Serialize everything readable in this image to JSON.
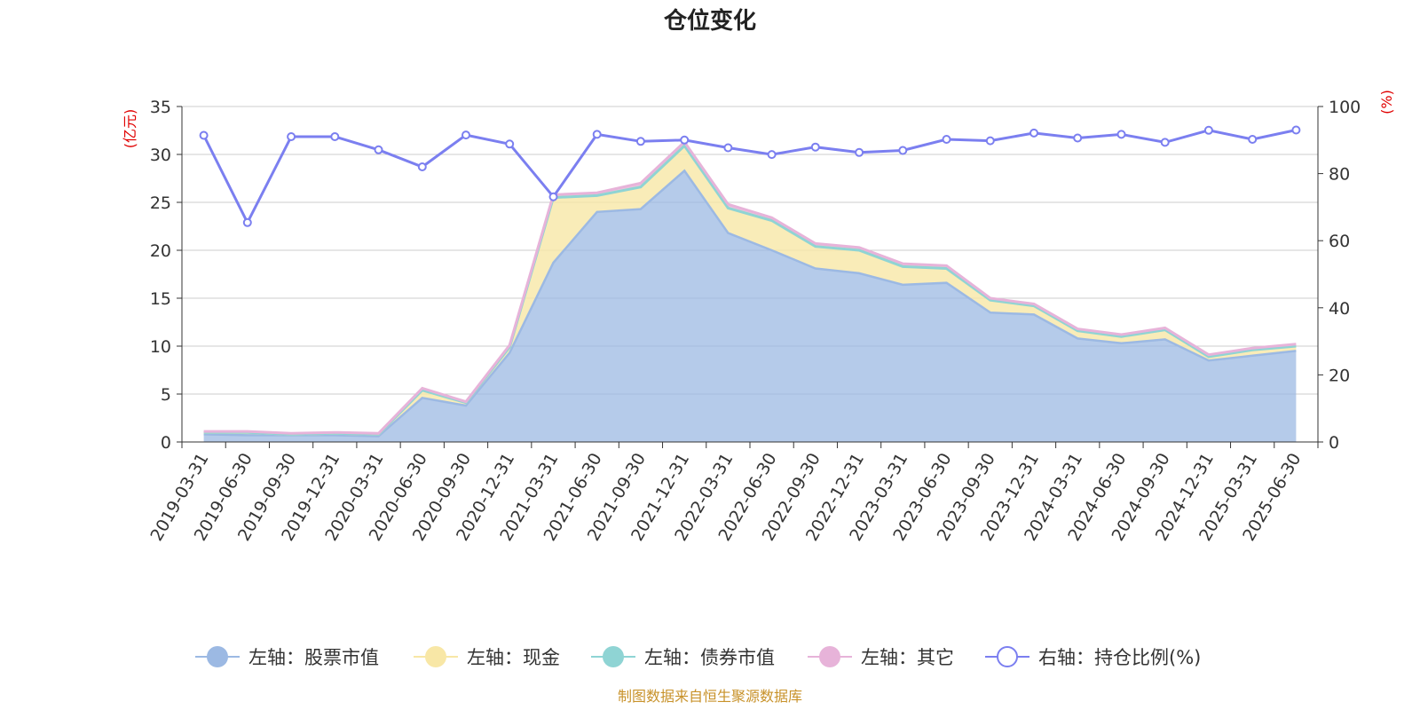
{
  "chart_data": {
    "type": "area",
    "title": "仓位变化",
    "left_unit": "(亿元)",
    "right_unit": "(%)",
    "ylim": [
      0,
      35
    ],
    "y_ticks": [
      0,
      5,
      10,
      15,
      20,
      25,
      30,
      35
    ],
    "y2lim": [
      0,
      100
    ],
    "y2_ticks": [
      0,
      20,
      40,
      60,
      80,
      100
    ],
    "grid": true,
    "legend_position": "bottom",
    "categories": [
      "2019-03-31",
      "2019-06-30",
      "2019-09-30",
      "2019-12-31",
      "2020-03-31",
      "2020-06-30",
      "2020-09-30",
      "2020-12-31",
      "2021-03-31",
      "2021-06-30",
      "2021-09-30",
      "2021-12-31",
      "2022-03-31",
      "2022-06-30",
      "2022-09-30",
      "2022-12-31",
      "2023-03-31",
      "2023-06-30",
      "2023-09-30",
      "2023-12-31",
      "2024-03-31",
      "2024-06-30",
      "2024-09-30",
      "2024-12-31",
      "2025-03-31",
      "2025-06-30"
    ],
    "series": [
      {
        "name": "左轴：股票市值",
        "axis": "left",
        "kind": "stacked-area",
        "color": "#9cb9e3",
        "values": [
          0.8,
          0.7,
          0.7,
          0.7,
          0.6,
          4.6,
          3.8,
          9.3,
          18.7,
          24.0,
          24.3,
          28.3,
          21.8,
          20.0,
          18.1,
          17.6,
          16.4,
          16.6,
          13.5,
          13.3,
          10.8,
          10.3,
          10.7,
          8.5,
          9.0,
          9.5
        ]
      },
      {
        "name": "左轴：现金",
        "axis": "left",
        "kind": "stacked-area",
        "color": "#f8e7a6",
        "values": [
          0.2,
          0.3,
          0.1,
          0.2,
          0.2,
          0.8,
          0.3,
          0.6,
          6.8,
          1.7,
          2.3,
          2.6,
          2.6,
          3.1,
          2.3,
          2.4,
          1.9,
          1.5,
          1.3,
          0.9,
          0.8,
          0.7,
          1.0,
          0.4,
          0.6,
          0.5
        ]
      },
      {
        "name": "左轴：债券市值",
        "axis": "left",
        "kind": "stacked-area",
        "color": "#8fd4d4",
        "values": [
          0,
          0,
          0,
          0,
          0,
          0,
          0,
          0,
          0,
          0,
          0,
          0,
          0,
          0,
          0,
          0,
          0,
          0,
          0,
          0,
          0,
          0,
          0,
          0,
          0,
          0
        ]
      },
      {
        "name": "左轴：其它",
        "axis": "left",
        "kind": "stacked-area",
        "color": "#e7b3d9",
        "values": [
          0.1,
          0.1,
          0.1,
          0.1,
          0.1,
          0.2,
          0.1,
          0.2,
          0.3,
          0.3,
          0.4,
          0.4,
          0.4,
          0.3,
          0.3,
          0.3,
          0.3,
          0.3,
          0.2,
          0.2,
          0.2,
          0.2,
          0.2,
          0.2,
          0.2,
          0.2
        ]
      },
      {
        "name": "右轴：持仓比例(%)",
        "axis": "right",
        "kind": "line",
        "color": "#7b7ff0",
        "values": [
          91.4,
          65.4,
          91.0,
          91.0,
          87.1,
          82.0,
          91.5,
          88.8,
          73.1,
          91.7,
          89.6,
          90.0,
          87.7,
          85.7,
          87.9,
          86.3,
          86.9,
          90.2,
          89.8,
          92.1,
          90.6,
          91.7,
          89.3,
          92.9,
          90.2,
          93.0
        ]
      }
    ]
  },
  "footer": {
    "source": "制图数据来自恒生聚源数据库"
  }
}
